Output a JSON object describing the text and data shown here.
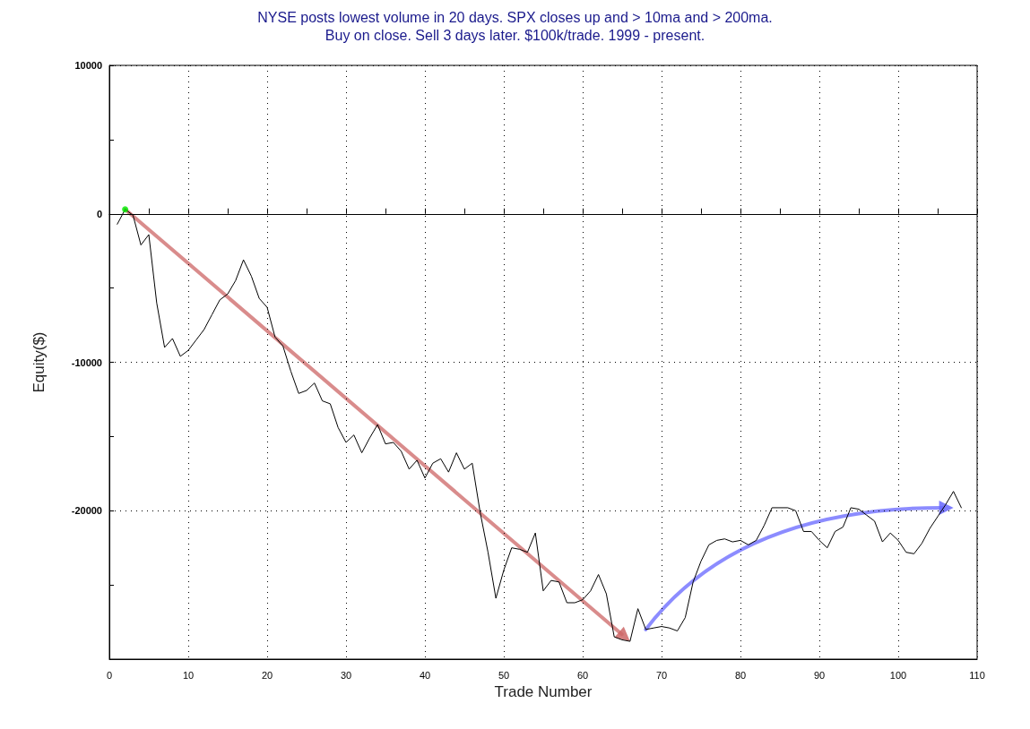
{
  "chart_data": {
    "type": "line",
    "title": "NYSE posts lowest volume in 20 days. SPX closes up and > 10ma and > 200ma.",
    "subtitle": "Buy on close. Sell 3 days later. $100k/trade. 1999 - present.",
    "xlabel": "Trade Number",
    "ylabel": "Equity($)",
    "xlim": [
      0,
      110
    ],
    "xticks": [
      0,
      {
        "value": 5,
        "label": null
      },
      10,
      {
        "value": 15,
        "label": null
      },
      20,
      {
        "value": 25,
        "label": null
      },
      30,
      {
        "value": 35,
        "label": null
      },
      40,
      {
        "value": 45,
        "label": null
      },
      50,
      {
        "value": 55,
        "label": null
      },
      60,
      {
        "value": 65,
        "label": null
      },
      70,
      {
        "value": 75,
        "label": null
      },
      80,
      {
        "value": 85,
        "label": null
      },
      90,
      {
        "value": 95,
        "label": null
      },
      100,
      {
        "value": 105,
        "label": null
      },
      110
    ],
    "ylim": [
      -30000,
      10000
    ],
    "yticks": [
      {
        "value": -25000,
        "label": null
      },
      -20000,
      {
        "value": -15000,
        "label": null
      },
      -10000,
      {
        "value": -5000,
        "label": null
      },
      0,
      {
        "value": 5000,
        "label": null
      },
      10000
    ],
    "grid": true,
    "marker": "none",
    "line_style": "solid",
    "series": [
      {
        "color": "#000000",
        "x": [
          1,
          2,
          3,
          4,
          5,
          6,
          7,
          8,
          9,
          10,
          11,
          12,
          13,
          14,
          15,
          16,
          17,
          18,
          19,
          20,
          21,
          22,
          23,
          24,
          25,
          26,
          27,
          28,
          29,
          30,
          31,
          32,
          33,
          34,
          35,
          36,
          37,
          38,
          39,
          40,
          41,
          42,
          43,
          44,
          45,
          46,
          47,
          48,
          49,
          50,
          51,
          52,
          53,
          54,
          55,
          56,
          57,
          58,
          59,
          60,
          61,
          62,
          63,
          64,
          65,
          66,
          67,
          68,
          69,
          70,
          71,
          72,
          73,
          74,
          75,
          76,
          77,
          78,
          79,
          80,
          81,
          82,
          83,
          84,
          85,
          86,
          87,
          88,
          89,
          90,
          91,
          92,
          93,
          94,
          95,
          96,
          97,
          98,
          99,
          100,
          101,
          102,
          103,
          104,
          105,
          106,
          107,
          108
        ],
        "values": [
          -700,
          300,
          -100,
          -2100,
          -1400,
          -6000,
          -9000,
          -8400,
          -9600,
          -9200,
          -8500,
          -7800,
          -6800,
          -5800,
          -5400,
          -4500,
          -3100,
          -4200,
          -5700,
          -6300,
          -8300,
          -8900,
          -10600,
          -12100,
          -11900,
          -11400,
          -12600,
          -12800,
          -14400,
          -15400,
          -14900,
          -16100,
          -15100,
          -14200,
          -15500,
          -15400,
          -16000,
          -17200,
          -16600,
          -17800,
          -16800,
          -16500,
          -17400,
          -16100,
          -17200,
          -16800,
          -20100,
          -22800,
          -25900,
          -24000,
          -22500,
          -22600,
          -22800,
          -21500,
          -25400,
          -24700,
          -24800,
          -26200,
          -26200,
          -26000,
          -25400,
          -24300,
          -25600,
          -28500,
          -28700,
          -28800,
          -26600,
          -28000,
          -27900,
          -27800,
          -27900,
          -28100,
          -27200,
          -24800,
          -23400,
          -22300,
          -22000,
          -21900,
          -22100,
          -22000,
          -22300,
          -22000,
          -21000,
          -19800,
          -19800,
          -19800,
          -20000,
          -21400,
          -21400,
          -22000,
          -22500,
          -21400,
          -21100,
          -19800,
          -19900,
          -20300,
          -20700,
          -22100,
          -21500,
          -22000,
          -22800,
          -22900,
          -22200,
          -21200,
          -20400,
          -19600,
          -18700,
          -19800
        ]
      },
      {
        "type": "scatter",
        "color": "#00ee00",
        "marker": "circle",
        "x": [
          2
        ],
        "values": [
          300
        ]
      }
    ]
  }
}
